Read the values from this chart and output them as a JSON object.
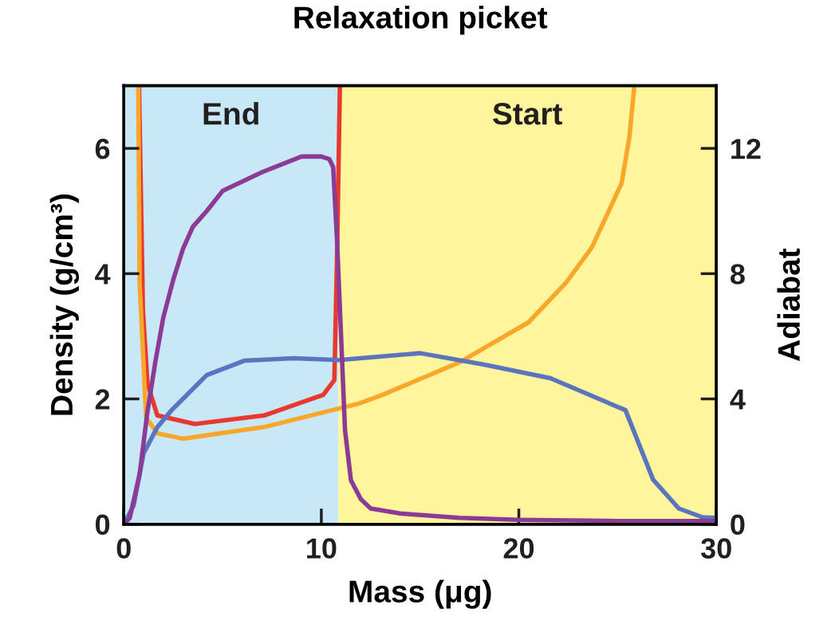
{
  "chart_data": {
    "type": "line",
    "title": "Relaxation picket",
    "xlabel": "Mass (μg)",
    "ylabel": "Density (g/cm³)",
    "y2label": "Adiabat",
    "xlim": [
      0,
      30
    ],
    "xticks": [
      0,
      10,
      20,
      30
    ],
    "ylim": [
      0,
      7
    ],
    "yticks": [
      0,
      2,
      4,
      6
    ],
    "y2lim": [
      0,
      14
    ],
    "y2ticks": [
      0,
      4,
      8,
      12
    ],
    "grid": false,
    "legend": false,
    "bands": [
      {
        "axis": "x",
        "from": 0,
        "to": 10.86,
        "label": "End",
        "color": "#c8e8f8"
      },
      {
        "axis": "x",
        "from": 10.86,
        "to": 30,
        "label": "Start",
        "color": "#fff59d"
      }
    ],
    "series": [
      {
        "color": "#5a74be",
        "x": [
          0,
          0.5,
          1.0,
          1.7,
          2.42,
          4.2,
          6.1,
          8.6,
          10.9,
          15,
          18.2,
          21.6,
          25.4,
          26.8,
          28.1,
          29.3,
          30
        ],
        "values": [
          0,
          0.3,
          1.13,
          1.55,
          1.82,
          2.38,
          2.61,
          2.65,
          2.62,
          2.73,
          2.55,
          2.33,
          1.82,
          0.71,
          0.25,
          0.11,
          0.1
        ]
      },
      {
        "color": "#8b3a96",
        "x": [
          0,
          0.3,
          0.8,
          1.2,
          1.6,
          2.0,
          2.5,
          3,
          3.5,
          4.2,
          5,
          7,
          9,
          10,
          10.4,
          10.6,
          10.8,
          11,
          11.2,
          11.5,
          12,
          12.5,
          14,
          17,
          20,
          25,
          30
        ],
        "values": [
          0,
          0.1,
          0.8,
          1.8,
          2.6,
          3.3,
          3.9,
          4.4,
          4.75,
          5.0,
          5.32,
          5.62,
          5.87,
          5.87,
          5.83,
          5.7,
          4.5,
          3,
          1.5,
          0.7,
          0.4,
          0.25,
          0.17,
          0.1,
          0.07,
          0.05,
          0.05
        ]
      },
      {
        "color": "#e8392e",
        "axis": "y2",
        "x": [
          0.77,
          0.97,
          1.2,
          1.7,
          3.6,
          7.1,
          10.1,
          10.66,
          10.8,
          10.94
        ],
        "values": [
          14,
          6.8,
          4.48,
          3.47,
          3.2,
          3.47,
          4.13,
          4.6,
          8.66,
          14
        ]
      },
      {
        "color": "#f9a72b",
        "axis": "y2",
        "x": [
          0.73,
          0.8,
          1.13,
          1.7,
          3.0,
          7.1,
          11.9,
          13.1,
          17,
          20.5,
          22.4,
          23.7,
          25.2,
          25.6,
          25.85
        ],
        "values": [
          14,
          7.7,
          3.39,
          2.9,
          2.73,
          3.1,
          3.85,
          4.13,
          5.17,
          6.45,
          7.72,
          8.84,
          10.88,
          12.36,
          14
        ]
      }
    ]
  }
}
